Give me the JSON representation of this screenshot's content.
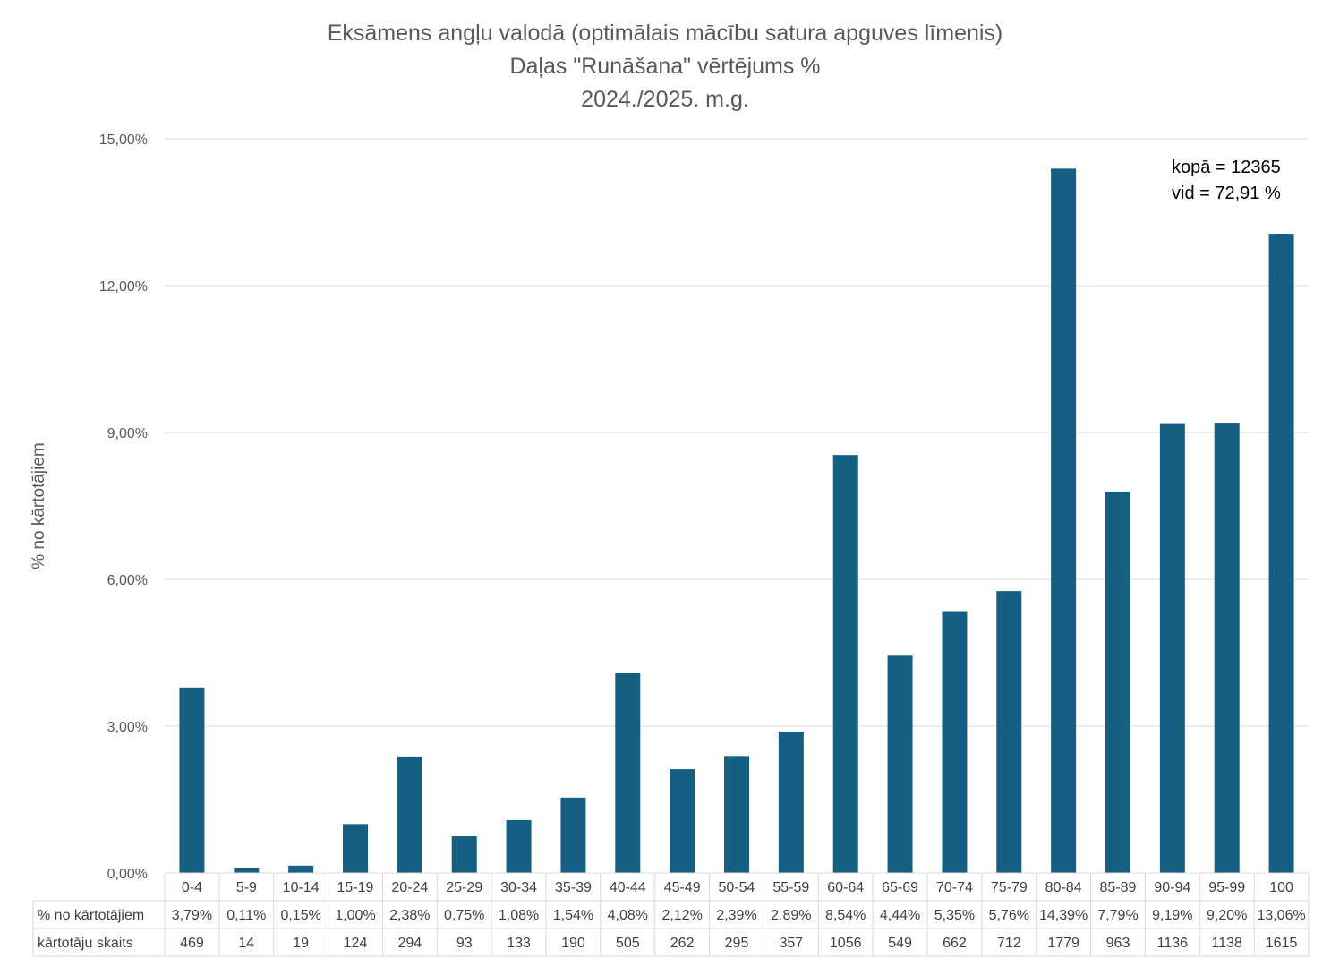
{
  "chart_data": {
    "type": "bar",
    "title_lines": [
      "Eksāmens angļu valodā (optimālais mācību satura apguves līmenis)",
      "Daļas \"Runāšana\" vērtējums %",
      "2024./2025. m.g."
    ],
    "ylabel": "% no kārtotājiem",
    "xlabel": "",
    "ylim": [
      0,
      15
    ],
    "yticks": [
      0,
      3,
      6,
      9,
      12,
      15
    ],
    "ytick_labels": [
      "0,00%",
      "3,00%",
      "6,00%",
      "9,00%",
      "12,00%",
      "15,00%"
    ],
    "grid": true,
    "bar_color": "#156082",
    "categories": [
      "0-4",
      "5-9",
      "10-14",
      "15-19",
      "20-24",
      "25-29",
      "30-34",
      "35-39",
      "40-44",
      "45-49",
      "50-54",
      "55-59",
      "60-64",
      "65-69",
      "70-74",
      "75-79",
      "80-84",
      "85-89",
      "90-94",
      "95-99",
      "100"
    ],
    "series": [
      {
        "name": "% no kārtotājiem",
        "values": [
          3.79,
          0.11,
          0.15,
          1.0,
          2.38,
          0.75,
          1.08,
          1.54,
          4.08,
          2.12,
          2.39,
          2.89,
          8.54,
          4.44,
          5.35,
          5.76,
          14.39,
          7.79,
          9.19,
          9.2,
          13.06
        ],
        "labels": [
          "3,79%",
          "0,11%",
          "0,15%",
          "1,00%",
          "2,38%",
          "0,75%",
          "1,08%",
          "1,54%",
          "4,08%",
          "2,12%",
          "2,39%",
          "2,89%",
          "8,54%",
          "4,44%",
          "5,35%",
          "5,76%",
          "14,39%",
          "7,79%",
          "9,19%",
          "9,20%",
          "13,06%"
        ]
      },
      {
        "name": "kārtotāju skaits",
        "values": [
          469,
          14,
          19,
          124,
          294,
          93,
          133,
          190,
          505,
          262,
          295,
          357,
          1056,
          549,
          662,
          712,
          1779,
          963,
          1136,
          1138,
          1615
        ],
        "plotted": false
      }
    ],
    "annotations": [
      "kopā = 12365",
      "vid = 72,91 %"
    ]
  }
}
